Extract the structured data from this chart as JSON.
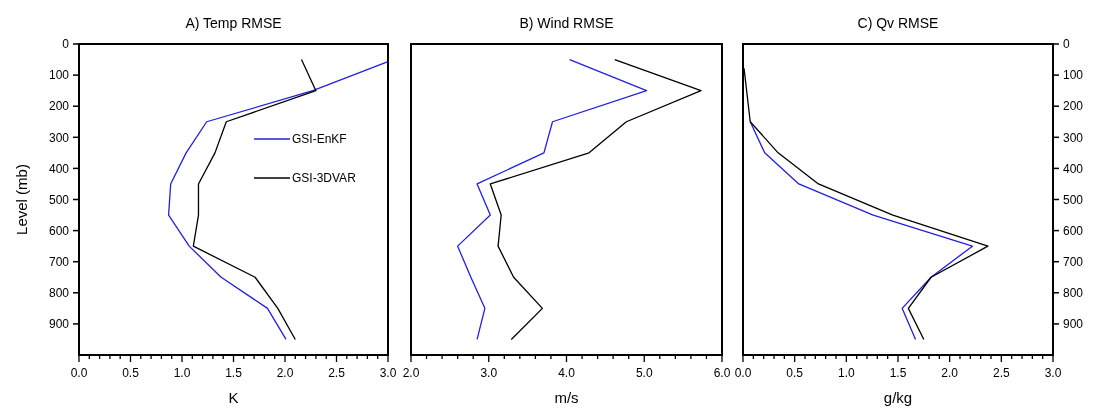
{
  "chart_data": [
    {
      "type": "line",
      "title": "A) Temp RMSE",
      "xlabel": "K",
      "ylabel": "Level (mb)",
      "xlim": [
        0,
        3
      ],
      "ylim": [
        1000,
        0
      ],
      "xticks": [
        {
          "value": 0,
          "label": "0.0"
        },
        {
          "value": 0.1,
          "label": null
        },
        {
          "value": 0.2,
          "label": null
        },
        {
          "value": 0.3,
          "label": null
        },
        {
          "value": 0.4,
          "label": null
        },
        {
          "value": 0.5,
          "label": "0.5"
        },
        {
          "value": 0.6,
          "label": null
        },
        {
          "value": 0.7,
          "label": null
        },
        {
          "value": 0.8,
          "label": null
        },
        {
          "value": 0.9,
          "label": null
        },
        {
          "value": 1,
          "label": "1.0"
        },
        {
          "value": 1.1,
          "label": null
        },
        {
          "value": 1.2,
          "label": null
        },
        {
          "value": 1.3,
          "label": null
        },
        {
          "value": 1.4,
          "label": null
        },
        {
          "value": 1.5,
          "label": "1.5"
        },
        {
          "value": 1.6,
          "label": null
        },
        {
          "value": 1.7,
          "label": null
        },
        {
          "value": 1.8,
          "label": null
        },
        {
          "value": 1.9,
          "label": null
        },
        {
          "value": 2,
          "label": "2.0"
        },
        {
          "value": 2.1,
          "label": null
        },
        {
          "value": 2.2,
          "label": null
        },
        {
          "value": 2.3,
          "label": null
        },
        {
          "value": 2.4,
          "label": null
        },
        {
          "value": 2.5,
          "label": "2.5"
        },
        {
          "value": 2.6,
          "label": null
        },
        {
          "value": 2.7,
          "label": null
        },
        {
          "value": 2.8,
          "label": null
        },
        {
          "value": 2.9,
          "label": null
        },
        {
          "value": 3,
          "label": "3.0"
        }
      ],
      "yticks": [
        0,
        100,
        200,
        300,
        400,
        500,
        600,
        700,
        800,
        900
      ],
      "legend": "right",
      "grid": false,
      "series": [
        {
          "name": "GSI-EnKF",
          "color": "#2020e0",
          "x": [
            3.0,
            2.27,
            1.24,
            1.04,
            0.89,
            0.87,
            1.07,
            1.38,
            1.83,
            2.01
          ],
          "values": [
            57,
            150,
            250,
            350,
            450,
            550,
            650,
            750,
            850,
            950
          ]
        },
        {
          "name": "GSI-3DVAR",
          "color": "#000000",
          "x": [
            2.16,
            2.3,
            1.43,
            1.32,
            1.16,
            1.16,
            1.11,
            1.71,
            1.93,
            2.1
          ],
          "values": [
            50,
            150,
            250,
            350,
            450,
            550,
            650,
            750,
            850,
            950
          ]
        }
      ]
    },
    {
      "type": "line",
      "title": "B) Wind RMSE",
      "xlabel": "m/s",
      "xlim": [
        2,
        6
      ],
      "ylim": [
        1000,
        0
      ],
      "tick_labels": "x",
      "grid": false,
      "xticks": [
        {
          "value": 2,
          "label": "2.0"
        },
        {
          "value": 2.2,
          "label": null
        },
        {
          "value": 2.4,
          "label": null
        },
        {
          "value": 2.6,
          "label": null
        },
        {
          "value": 2.8,
          "label": null
        },
        {
          "value": 3,
          "label": "3.0"
        },
        {
          "value": 3.2,
          "label": null
        },
        {
          "value": 3.4,
          "label": null
        },
        {
          "value": 3.6,
          "label": null
        },
        {
          "value": 3.8,
          "label": null
        },
        {
          "value": 4,
          "label": "4.0"
        },
        {
          "value": 4.2,
          "label": null
        },
        {
          "value": 4.4,
          "label": null
        },
        {
          "value": 4.6,
          "label": null
        },
        {
          "value": 4.8,
          "label": null
        },
        {
          "value": 5,
          "label": "5.0"
        },
        {
          "value": 5.2,
          "label": null
        },
        {
          "value": 5.4,
          "label": null
        },
        {
          "value": 5.6,
          "label": null
        },
        {
          "value": 5.8,
          "label": null
        },
        {
          "value": 6,
          "label": "6.0"
        }
      ],
      "series": [
        {
          "color": "#2020e0",
          "x": [
            4.04,
            5.03,
            3.82,
            3.71,
            2.85,
            3.02,
            2.6,
            2.77,
            2.95,
            2.85
          ],
          "values": [
            50,
            150,
            250,
            350,
            450,
            550,
            650,
            750,
            850,
            950
          ]
        },
        {
          "color": "#000000",
          "x": [
            4.62,
            5.73,
            4.77,
            4.29,
            3.02,
            3.16,
            3.12,
            3.32,
            3.69,
            3.29
          ],
          "values": [
            50,
            150,
            250,
            350,
            450,
            550,
            650,
            750,
            850,
            950
          ]
        }
      ]
    },
    {
      "type": "line",
      "title": "C) Qv RMSE",
      "xlabel": "g/kg",
      "xlim": [
        0,
        3
      ],
      "y2lim": [
        1000,
        0
      ],
      "y2ticks": [
        0,
        100,
        200,
        300,
        400,
        500,
        600,
        700,
        800,
        900
      ],
      "grid": false,
      "xticks": [
        {
          "value": 0,
          "label": "0.0"
        },
        {
          "value": 0.1,
          "label": null
        },
        {
          "value": 0.2,
          "label": null
        },
        {
          "value": 0.3,
          "label": null
        },
        {
          "value": 0.4,
          "label": null
        },
        {
          "value": 0.5,
          "label": "0.5"
        },
        {
          "value": 0.6,
          "label": null
        },
        {
          "value": 0.7,
          "label": null
        },
        {
          "value": 0.8,
          "label": null
        },
        {
          "value": 0.9,
          "label": null
        },
        {
          "value": 1,
          "label": "1.0"
        },
        {
          "value": 1.1,
          "label": null
        },
        {
          "value": 1.2,
          "label": null
        },
        {
          "value": 1.3,
          "label": null
        },
        {
          "value": 1.4,
          "label": null
        },
        {
          "value": 1.5,
          "label": "1.5"
        },
        {
          "value": 1.6,
          "label": null
        },
        {
          "value": 1.7,
          "label": null
        },
        {
          "value": 1.8,
          "label": null
        },
        {
          "value": 1.9,
          "label": null
        },
        {
          "value": 2,
          "label": "2.0"
        },
        {
          "value": 2.1,
          "label": null
        },
        {
          "value": 2.2,
          "label": null
        },
        {
          "value": 2.3,
          "label": null
        },
        {
          "value": 2.4,
          "label": null
        },
        {
          "value": 2.5,
          "label": "2.5"
        },
        {
          "value": 2.6,
          "label": null
        },
        {
          "value": 2.7,
          "label": null
        },
        {
          "value": 2.8,
          "label": null
        },
        {
          "value": 2.9,
          "label": null
        },
        {
          "value": 3,
          "label": "3.0"
        }
      ],
      "series": [
        {
          "color": "#2020e0",
          "axis": "y2",
          "x": [
            0.07,
            0.21,
            0.54,
            1.26,
            2.22,
            1.82,
            1.54,
            1.67
          ],
          "values": [
            250,
            350,
            450,
            550,
            650,
            750,
            850,
            950
          ]
        },
        {
          "color": "#000000",
          "axis": "y2",
          "x": [
            0.01,
            0.07,
            0.34,
            0.73,
            1.45,
            2.37,
            1.82,
            1.6,
            1.75
          ],
          "values": [
            78,
            250,
            350,
            450,
            550,
            650,
            750,
            850,
            950
          ]
        }
      ]
    }
  ]
}
